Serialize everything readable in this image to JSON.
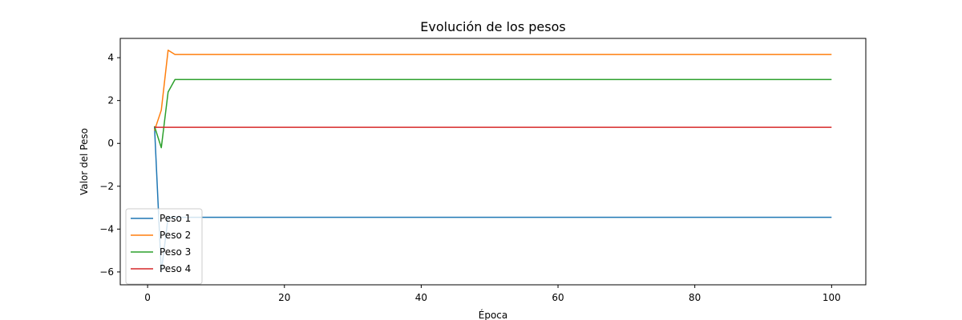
{
  "chart_data": {
    "type": "line",
    "title": "Evolución de los pesos",
    "xlabel": "Época",
    "ylabel": "Valor del Peso",
    "xlim": [
      -4,
      105
    ],
    "ylim": [
      -6.6,
      4.9
    ],
    "xticks": [
      0,
      20,
      40,
      60,
      80,
      100
    ],
    "yticks": [
      -6,
      -4,
      -2,
      0,
      2,
      4
    ],
    "grid": false,
    "legend_position": "lower-left",
    "series": [
      {
        "name": "Peso 1",
        "color": "#1f77b4",
        "points": [
          [
            1,
            0.8
          ],
          [
            2,
            -6.0
          ],
          [
            3,
            -3.45
          ],
          [
            100,
            -3.45
          ]
        ]
      },
      {
        "name": "Peso 2",
        "color": "#ff7f0e",
        "points": [
          [
            1,
            0.6
          ],
          [
            2,
            1.55
          ],
          [
            3,
            4.35
          ],
          [
            4,
            4.15
          ],
          [
            100,
            4.15
          ]
        ]
      },
      {
        "name": "Peso 3",
        "color": "#2ca02c",
        "points": [
          [
            1,
            0.8
          ],
          [
            2,
            -0.2
          ],
          [
            3,
            2.4
          ],
          [
            4,
            2.98
          ],
          [
            100,
            2.98
          ]
        ]
      },
      {
        "name": "Peso 4",
        "color": "#d62728",
        "points": [
          [
            1,
            0.75
          ],
          [
            100,
            0.75
          ]
        ]
      }
    ]
  }
}
